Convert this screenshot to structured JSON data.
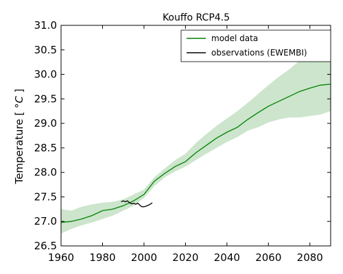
{
  "chart_data": {
    "type": "line",
    "title": "Kouffo RCP4.5",
    "xlabel": "",
    "ylabel_text": "Temperature [",
    "ylabel_unit": "°C",
    "ylabel_close": "]",
    "xlim": [
      1960,
      2090
    ],
    "ylim": [
      26.5,
      31.0
    ],
    "xticks": [
      1960,
      1980,
      2000,
      2020,
      2040,
      2060,
      2080
    ],
    "yticks": [
      26.5,
      27.0,
      27.5,
      28.0,
      28.5,
      29.0,
      29.5,
      30.0,
      30.5,
      31.0
    ],
    "ytick_labels": [
      "26.5",
      "27.0",
      "27.5",
      "28.0",
      "28.5",
      "29.0",
      "29.5",
      "30.0",
      "30.5",
      "31.0"
    ],
    "grid": false,
    "legend_position": "top-right",
    "colors": {
      "model": "#008000",
      "band": "#cce5cc",
      "observations": "#000000"
    },
    "series": [
      {
        "name": "model data",
        "x": [
          1960,
          1965,
          1970,
          1975,
          1980,
          1985,
          1990,
          1995,
          2000,
          2005,
          2010,
          2015,
          2020,
          2025,
          2030,
          2035,
          2040,
          2045,
          2050,
          2055,
          2060,
          2065,
          2070,
          2075,
          2080,
          2085,
          2090
        ],
        "y": [
          26.98,
          27.0,
          27.05,
          27.12,
          27.22,
          27.25,
          27.32,
          27.42,
          27.55,
          27.82,
          27.98,
          28.12,
          28.22,
          28.4,
          28.55,
          28.7,
          28.82,
          28.92,
          29.08,
          29.22,
          29.35,
          29.45,
          29.55,
          29.65,
          29.72,
          29.78,
          29.8
        ]
      },
      {
        "name": "model range",
        "x": [
          1960,
          1965,
          1970,
          1975,
          1980,
          1985,
          1990,
          1995,
          2000,
          2005,
          2010,
          2015,
          2020,
          2025,
          2030,
          2035,
          2040,
          2045,
          2050,
          2055,
          2060,
          2065,
          2070,
          2075,
          2080,
          2085,
          2090
        ],
        "lower": [
          26.75,
          26.85,
          26.92,
          26.98,
          27.05,
          27.12,
          27.22,
          27.32,
          27.48,
          27.72,
          27.9,
          28.02,
          28.12,
          28.25,
          28.38,
          28.5,
          28.62,
          28.72,
          28.85,
          28.92,
          29.02,
          29.08,
          29.12,
          29.12,
          29.15,
          29.18,
          29.25
        ],
        "upper": [
          27.25,
          27.22,
          27.3,
          27.35,
          27.38,
          27.4,
          27.45,
          27.55,
          27.65,
          27.9,
          28.08,
          28.25,
          28.38,
          28.6,
          28.78,
          28.95,
          29.1,
          29.25,
          29.42,
          29.6,
          29.78,
          29.95,
          30.1,
          30.28,
          30.4,
          30.48,
          30.5
        ]
      },
      {
        "name": "observations (EWEMBI)",
        "x": [
          1989,
          1990,
          1991,
          1992,
          1993,
          1994,
          1995,
          1996,
          1997,
          1998,
          1999,
          2000,
          2001,
          2002,
          2003,
          2004
        ],
        "y": [
          27.4,
          27.42,
          27.4,
          27.42,
          27.38,
          27.36,
          27.37,
          27.35,
          27.37,
          27.33,
          27.3,
          27.3,
          27.31,
          27.33,
          27.35,
          27.38
        ]
      }
    ]
  }
}
